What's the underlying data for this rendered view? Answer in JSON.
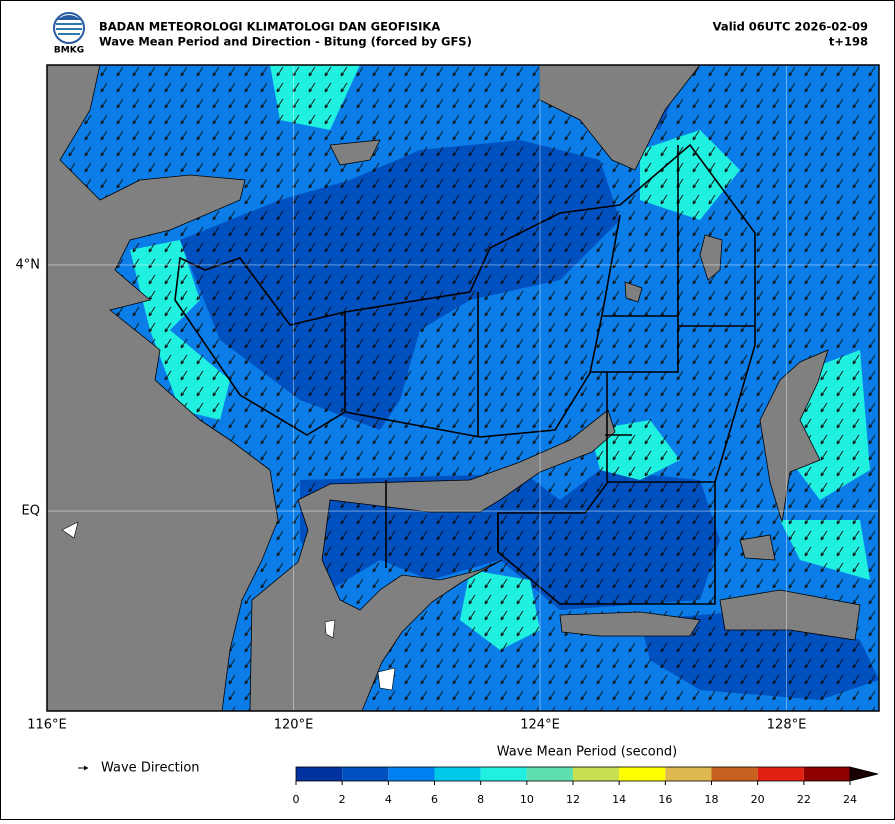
{
  "header": {
    "agency": "BADAN METEOROLOGI KLIMATOLOGI DAN GEOFISIKA",
    "product": "Wave Mean Period and Direction - Bitung (forced by GFS)",
    "valid": "Valid 06UTC 2026-02-09",
    "lead": "t+198",
    "logo_text": "BMKG"
  },
  "map": {
    "lon_range": [
      116,
      129.5
    ],
    "lat_range": [
      -3.25,
      7.25
    ],
    "lon_ticks": [
      {
        "value": 116,
        "label": "116°E"
      },
      {
        "value": 120,
        "label": "120°E"
      },
      {
        "value": 124,
        "label": "124°E"
      },
      {
        "value": 128,
        "label": "128°E"
      }
    ],
    "lat_ticks": [
      {
        "value": 4,
        "label": "4°N"
      },
      {
        "value": 0,
        "label": "EQ"
      }
    ]
  },
  "legend": {
    "label": "Wave Direction"
  },
  "colorbar": {
    "title": "Wave Mean Period (second)",
    "ticks": [
      0,
      2,
      4,
      6,
      8,
      10,
      12,
      14,
      16,
      18,
      20,
      22,
      24
    ],
    "colors": [
      "#0033a0",
      "#0050c0",
      "#0080f0",
      "#00c8e8",
      "#20f0e0",
      "#60e0b0",
      "#c8e050",
      "#ffff00",
      "#e0b850",
      "#c86020",
      "#e02010",
      "#900000"
    ],
    "extend_color": "#1a0000"
  }
}
